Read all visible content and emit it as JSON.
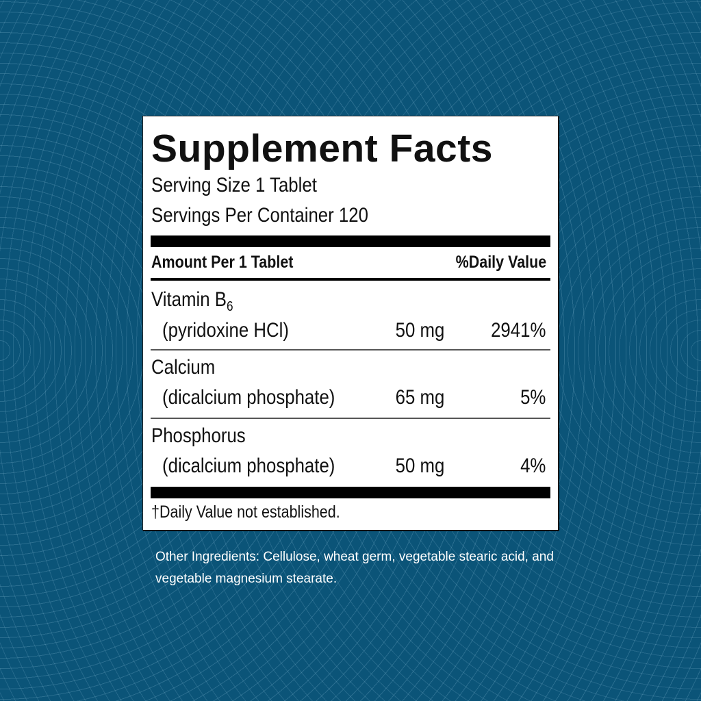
{
  "label": {
    "title": "Supplement Facts",
    "serving_size": "Serving Size 1 Tablet",
    "servings_per_container": "Servings Per Container 120",
    "header_amount": "Amount Per 1 Tablet",
    "header_dv": "%Daily Value",
    "nutrients": [
      {
        "name": "Vitamin B",
        "subscript": "6",
        "source": "(pyridoxine HCl)",
        "amount": "50 mg",
        "dv": "2941%"
      },
      {
        "name": "Calcium",
        "subscript": "",
        "source": "(dicalcium phosphate)",
        "amount": "65 mg",
        "dv": "5%"
      },
      {
        "name": "Phosphorus",
        "subscript": "",
        "source": "(dicalcium phosphate)",
        "amount": "50 mg",
        "dv": "4%"
      }
    ],
    "footnote": "†Daily Value not established."
  },
  "other_ingredients": "Other Ingredients: Cellulose, wheat germ, vegetable stearic acid, and vegetable magnesium stearate.",
  "colors": {
    "background": "#0b5478",
    "panel": "#ffffff",
    "text": "#111111"
  }
}
